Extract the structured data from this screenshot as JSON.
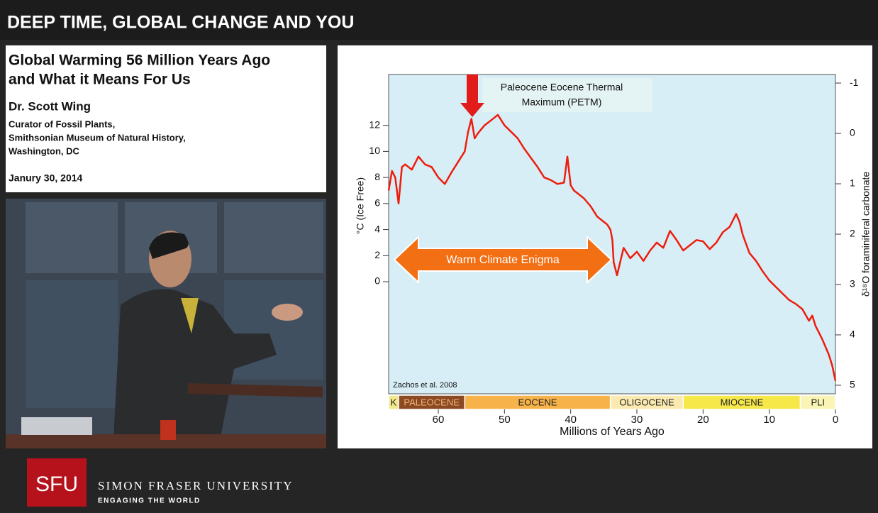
{
  "header": {
    "title": "DEEP TIME, GLOBAL CHANGE AND YOU"
  },
  "info": {
    "title_lines": [
      "Global Warming 56 Million Years Ago",
      "and What it Means For Us"
    ],
    "speaker": "Dr. Scott Wing",
    "affiliation_lines": [
      "Curator of Fossil Plants,",
      "Smithsonian Museum of Natural History,",
      "Washington, DC"
    ],
    "date": "Janury 30, 2014"
  },
  "chart_data": {
    "type": "line",
    "x_label": "Millions of Years Ago",
    "y_label": "°C (Ice Free)",
    "y2_label": "δ¹⁸O foraminiferal carbonate",
    "xlim": [
      67.5,
      0
    ],
    "xticks": [
      60,
      50,
      40,
      30,
      20,
      10,
      0
    ],
    "ylim": [
      -8.6,
      15.9
    ],
    "yticks": [
      0,
      2,
      4,
      6,
      8,
      10,
      12
    ],
    "y2lim": [
      5.17,
      -1.17
    ],
    "y2ticks": [
      -1,
      0,
      1,
      2,
      3,
      4,
      5
    ],
    "x": [
      67.5,
      67,
      66.5,
      66,
      65.5,
      65,
      64,
      63,
      62,
      61,
      60,
      59,
      58,
      57,
      56,
      55.5,
      55,
      54.5,
      54,
      53,
      52,
      51,
      50,
      49,
      48,
      47,
      46,
      45,
      44,
      43,
      42,
      41,
      40.5,
      40,
      39.5,
      39,
      38,
      37,
      36,
      35,
      34.5,
      34,
      33.7,
      33.5,
      33,
      32,
      31,
      30,
      29,
      28,
      27,
      26,
      25,
      24,
      23,
      22,
      21,
      20,
      19,
      18,
      17,
      16,
      15,
      14.5,
      14,
      13,
      12,
      11,
      10,
      9,
      8,
      7,
      6,
      5,
      4,
      3.5,
      3,
      2.5,
      2,
      1.5,
      1,
      0.5,
      0
    ],
    "series": [
      {
        "color": "#ee1c0c",
        "values": [
          7,
          8.5,
          8,
          6,
          8.8,
          9,
          8.6,
          9.6,
          9,
          8.8,
          8,
          7.5,
          8.4,
          9.2,
          10,
          11.5,
          12.5,
          11,
          11.4,
          12,
          12.4,
          12.8,
          12,
          11.5,
          11,
          10.2,
          9.5,
          8.8,
          8,
          7.8,
          7.5,
          7.6,
          9.6,
          7.4,
          7,
          6.8,
          6.4,
          5.8,
          5,
          4.6,
          4.4,
          4,
          3.2,
          1.5,
          0.5,
          2.6,
          1.8,
          2.3,
          1.6,
          2.4,
          3,
          2.6,
          3.9,
          3.2,
          2.4,
          2.8,
          3.2,
          3.1,
          2.5,
          3,
          3.8,
          4.2,
          5.2,
          4.6,
          3.6,
          2.2,
          1.6,
          0.8,
          0.1,
          -0.4,
          -0.9,
          -1.4,
          -1.7,
          -2.1,
          -3,
          -2.6,
          -3.4,
          -3.9,
          -4.4,
          -5,
          -5.6,
          -6.4,
          -7.6
        ]
      }
    ],
    "epochs": [
      {
        "name": "K",
        "start": 67.5,
        "end": 66,
        "color": "#f2e98a"
      },
      {
        "name": "PALEOCENE",
        "start": 66,
        "end": 56,
        "color": "#8b4a22"
      },
      {
        "name": "EOCENE",
        "start": 56,
        "end": 34,
        "color": "#f7b24a"
      },
      {
        "name": "OLIGOCENE",
        "start": 34,
        "end": 23,
        "color": "#fbeab0"
      },
      {
        "name": "MIOCENE",
        "start": 23,
        "end": 5.3,
        "color": "#f7e84a"
      },
      {
        "name": "PLI",
        "start": 5.3,
        "end": 0,
        "color": "#fbf5b5"
      }
    ],
    "annotations": {
      "petm_lines": [
        "Paleocene Eocene Thermal",
        "Maximum (PETM)"
      ],
      "enigma": "Warm Climate Enigma",
      "source": "Zachos et al. 2008"
    }
  },
  "footer": {
    "logo": "SFU",
    "university": "SIMON FRASER UNIVERSITY",
    "tagline": "ENGAGING THE WORLD"
  }
}
